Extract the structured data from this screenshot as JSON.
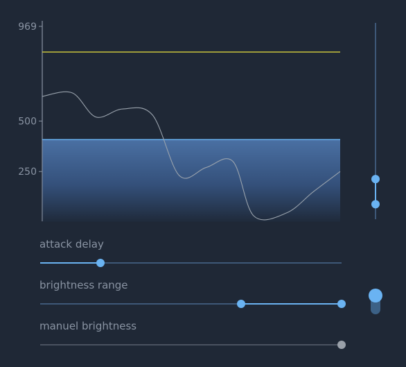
{
  "chart_data": {
    "type": "area",
    "y_ticks": [
      250,
      500,
      969
    ],
    "y_tick_labels": [
      "250",
      "500",
      "969"
    ],
    "ylim": [
      0,
      969
    ],
    "grid": false,
    "series": [
      {
        "kind": "threshold",
        "values": [
          842
        ],
        "color": "#c8c23c"
      },
      {
        "kind": "level-area",
        "values": [
          408
        ],
        "color": "#6ab3f2"
      },
      {
        "kind": "curve",
        "color": "#9aa3ad",
        "x": [
          0,
          0.1,
          0.18,
          0.27,
          0.37,
          0.46,
          0.55,
          0.64,
          0.71,
          0.82,
          0.91,
          1.0
        ],
        "values": [
          622,
          640,
          520,
          560,
          530,
          230,
          270,
          300,
          30,
          45,
          150,
          250
        ]
      }
    ]
  },
  "vertical_range": {
    "low": 74,
    "high": 198,
    "min": 0,
    "max": 969
  },
  "sliders": [
    {
      "label": "attack delay",
      "value": 0.2,
      "enabled": true
    },
    {
      "label": "brightness range",
      "low": 0.667,
      "high": 1.0,
      "enabled": true
    },
    {
      "label": "manuel brightness",
      "value": 1.0,
      "enabled": false
    }
  ],
  "toggle": {
    "on": true
  },
  "colors": {
    "background": "#1f2836",
    "accent": "#6ab3f2",
    "threshold": "#c8c23c",
    "track": "#3e5878",
    "disabled": "#9aa1aa"
  }
}
